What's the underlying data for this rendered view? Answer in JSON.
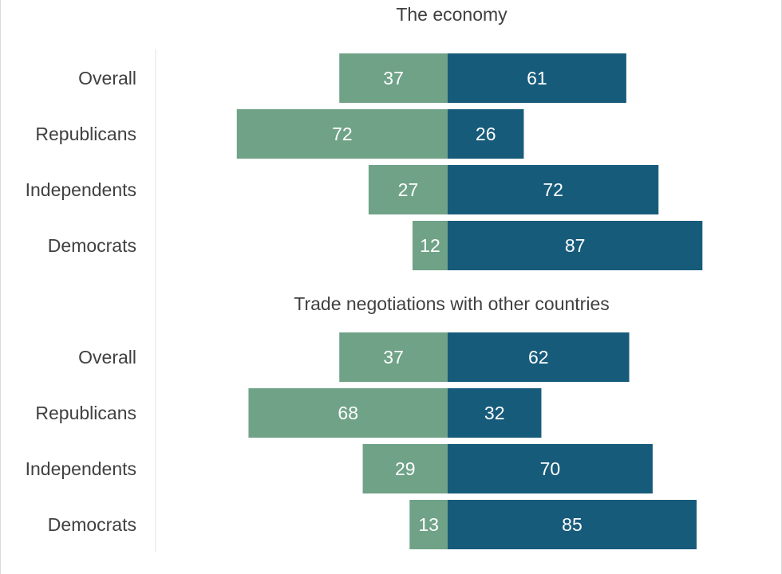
{
  "colors": {
    "left_series": "#6fa287",
    "right_series": "#175b7b",
    "text": "#404040",
    "bar_text": "#ffffff",
    "axis_line": "#d9d9d9"
  },
  "chart_data": [
    {
      "type": "bar",
      "orientation": "horizontal-diverging",
      "title": "The economy",
      "categories": [
        "Overall",
        "Republicans",
        "Independents",
        "Democrats"
      ],
      "series": [
        {
          "values": [
            37,
            72,
            27,
            12
          ]
        },
        {
          "values": [
            61,
            26,
            72,
            87
          ]
        }
      ]
    },
    {
      "type": "bar",
      "orientation": "horizontal-diverging",
      "title": "Trade negotiations with other countries",
      "categories": [
        "Overall",
        "Republicans",
        "Independents",
        "Democrats"
      ],
      "series": [
        {
          "values": [
            37,
            68,
            29,
            13
          ]
        },
        {
          "values": [
            62,
            32,
            70,
            85
          ]
        }
      ]
    }
  ]
}
